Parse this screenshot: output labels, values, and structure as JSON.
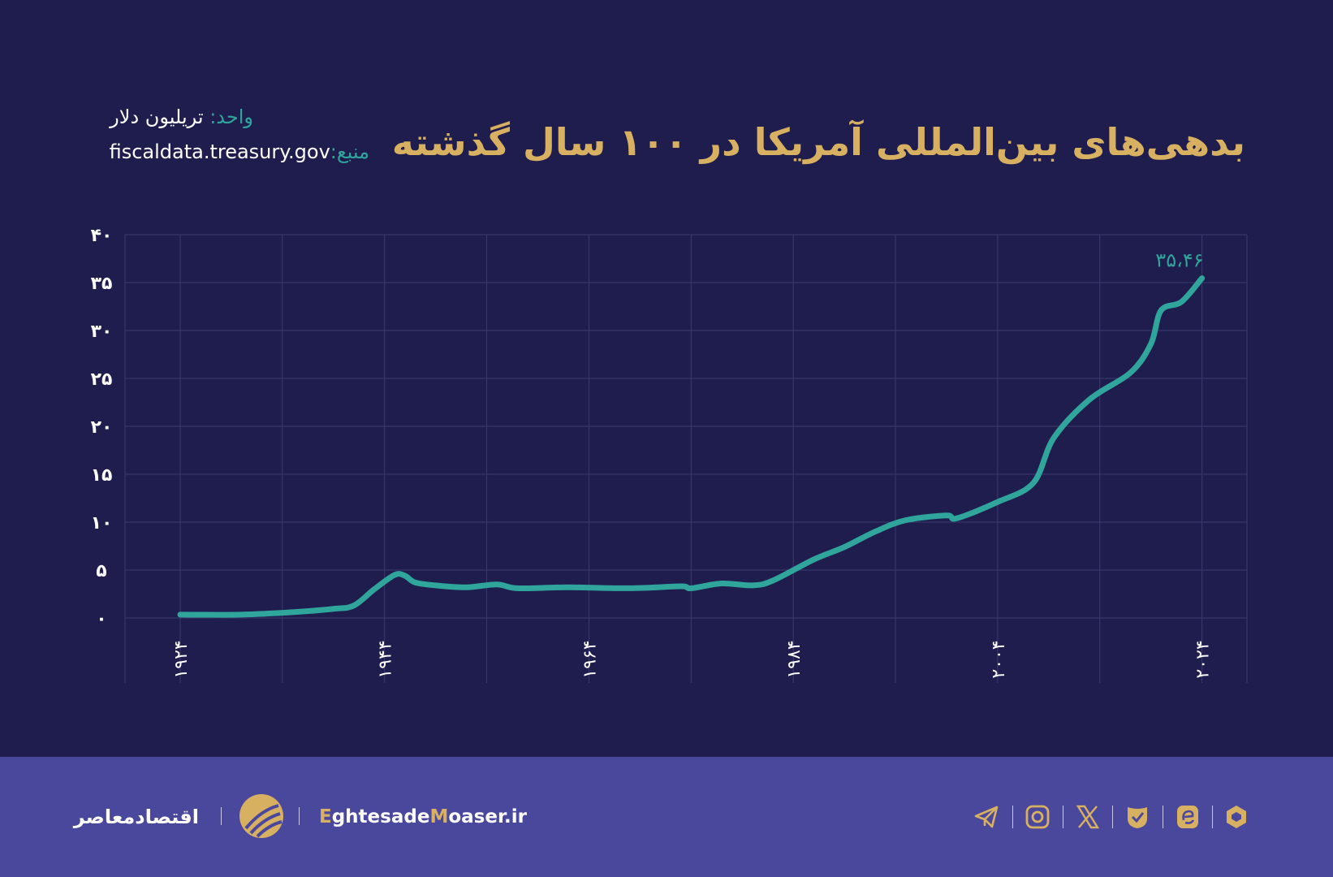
{
  "header": {
    "title": "بدهی‌های بین‌المللی آمریکا در ۱۰۰ سال گذشته",
    "unit_label": "واحد:",
    "unit_value": "تریلیون دلار",
    "source_label": "منبع:",
    "source_value": "fiscaldata.treasury.gov"
  },
  "colors": {
    "background": "#1f1d4e",
    "footer": "#4a489c",
    "accent": "#d8b062",
    "line": "#2fa59c",
    "grid": "#3b3a6e"
  },
  "chart_data": {
    "type": "line",
    "title": "بدهی‌های بین‌المللی آمریکا در ۱۰۰ سال گذشته",
    "xlabel": "",
    "ylabel": "",
    "xlim": [
      1918.6,
      2028.4
    ],
    "ylim": [
      0,
      40
    ],
    "grid": true,
    "x_ticks": [
      1924,
      1944,
      1964,
      1984,
      2004,
      2024
    ],
    "x_tick_labels": [
      "۱۹۲۴",
      "۱۹۴۴",
      "۱۹۶۴",
      "۱۹۸۴",
      "۲۰۰۴",
      "۲۰۲۴"
    ],
    "y_ticks": [
      0,
      5,
      10,
      15,
      20,
      25,
      30,
      35,
      40
    ],
    "y_tick_labels": [
      "۰",
      "۵",
      "۱۰",
      "۱۵",
      "۲۰",
      "۲۵",
      "۳۰",
      "۳۵",
      "۴۰"
    ],
    "series": [
      {
        "x": [
          1924,
          1930,
          1935,
          1939,
          1941,
          1943,
          1945,
          1946,
          1947,
          1949,
          1952,
          1955,
          1957,
          1962,
          1968,
          1973,
          1974,
          1977,
          1980,
          1982,
          1986,
          1989,
          1992,
          1995,
          1999,
          2000,
          2004,
          2007.5,
          2009.5,
          2013,
          2017,
          2019,
          2020,
          2022,
          2024
        ],
        "y": [
          0.35,
          0.35,
          0.6,
          0.95,
          1.3,
          3.0,
          4.5,
          4.4,
          3.7,
          3.4,
          3.2,
          3.5,
          3.1,
          3.2,
          3.1,
          3.3,
          3.1,
          3.6,
          3.4,
          3.9,
          6.1,
          7.4,
          9.0,
          10.2,
          10.7,
          10.4,
          12.1,
          14.1,
          18.8,
          22.8,
          25.6,
          28.6,
          32.1,
          33.0,
          35.46
        ]
      }
    ],
    "annotations": [
      {
        "x": 2024,
        "y": 35.46,
        "text": "۳۵،۴۶"
      }
    ]
  },
  "footer": {
    "brand_fa": "اقتصادمعاصر",
    "site_prefix1": "E",
    "site_part1": "ghtesade",
    "site_prefix2": "M",
    "site_part2": "oaser.ir",
    "social_icons": [
      "telegram-icon",
      "instagram-icon",
      "x-icon",
      "eitaa-icon",
      "bale-icon",
      "rubika-icon"
    ]
  }
}
